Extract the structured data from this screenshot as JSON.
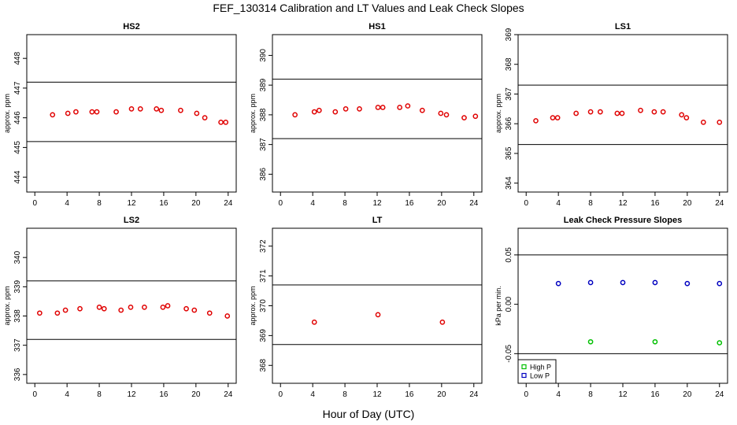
{
  "title": "FEF_130314  Calibration and LT Values and Leak Check Slopes",
  "xlabel": "Hour of Day (UTC)",
  "colors": {
    "points": "#e00000",
    "high_p": "#00c000",
    "low_p": "#0000c0",
    "lines": "#000000"
  },
  "chart_data": [
    {
      "type": "scatter",
      "title": "HS2",
      "ylabel": "approx. ppm",
      "xlim": [
        -1,
        25
      ],
      "ylim": [
        443.5,
        448.8
      ],
      "xticks": [
        0,
        4,
        8,
        12,
        16,
        20,
        24
      ],
      "yticks": [
        444,
        445,
        446,
        447,
        448
      ],
      "hlines": [
        445.2,
        447.2
      ],
      "series": [
        {
          "marker": "circle",
          "x": [
            2.2,
            4.1,
            5.1,
            7.1,
            7.7,
            10.1,
            12,
            13.1,
            15.1,
            15.7,
            18.1,
            20.1,
            21.1,
            23.1,
            23.7
          ],
          "y": [
            446.1,
            446.15,
            446.2,
            446.2,
            446.2,
            446.2,
            446.3,
            446.3,
            446.3,
            446.25,
            446.25,
            446.15,
            446.0,
            445.85,
            445.85
          ]
        }
      ]
    },
    {
      "type": "scatter",
      "title": "HS1",
      "ylabel": "approx. ppm",
      "xlim": [
        -1,
        25
      ],
      "ylim": [
        385.4,
        390.7
      ],
      "xticks": [
        0,
        4,
        8,
        12,
        16,
        20,
        24
      ],
      "yticks": [
        386,
        387,
        388,
        389,
        390
      ],
      "hlines": [
        387.2,
        389.2
      ],
      "series": [
        {
          "marker": "circle",
          "x": [
            1.8,
            4.2,
            4.8,
            6.8,
            8.1,
            9.8,
            12.1,
            12.7,
            14.8,
            15.8,
            17.6,
            19.9,
            20.6,
            22.8,
            24.2
          ],
          "y": [
            388.0,
            388.1,
            388.15,
            388.1,
            388.2,
            388.2,
            388.25,
            388.25,
            388.25,
            388.3,
            388.15,
            388.05,
            388.0,
            387.9,
            387.95
          ]
        }
      ]
    },
    {
      "type": "scatter",
      "title": "LS1",
      "ylabel": "approx. ppm",
      "xlim": [
        -1,
        25
      ],
      "ylim": [
        363.7,
        369.0
      ],
      "xticks": [
        0,
        4,
        8,
        12,
        16,
        20,
        24
      ],
      "yticks": [
        364,
        365,
        366,
        367,
        368,
        369
      ],
      "hlines": [
        365.3,
        367.3
      ],
      "series": [
        {
          "marker": "circle",
          "x": [
            1.2,
            3.3,
            3.9,
            6.2,
            8.0,
            9.2,
            11.3,
            11.9,
            14.2,
            15.9,
            17.0,
            19.3,
            19.9,
            22.0,
            24.0
          ],
          "y": [
            366.1,
            366.2,
            366.2,
            366.35,
            366.4,
            366.4,
            366.35,
            366.35,
            366.45,
            366.4,
            366.4,
            366.3,
            366.2,
            366.05,
            366.05
          ]
        }
      ]
    },
    {
      "type": "scatter",
      "title": "LS2",
      "ylabel": "approx. ppm",
      "xlim": [
        -1,
        25
      ],
      "ylim": [
        335.7,
        341.0
      ],
      "xticks": [
        0,
        4,
        8,
        12,
        16,
        20,
        24
      ],
      "yticks": [
        336,
        337,
        338,
        339,
        340
      ],
      "hlines": [
        337.2,
        339.2
      ],
      "series": [
        {
          "marker": "circle",
          "x": [
            0.6,
            2.8,
            3.8,
            5.6,
            8.0,
            8.6,
            10.7,
            11.9,
            13.6,
            15.9,
            16.5,
            18.8,
            19.8,
            21.7,
            23.9
          ],
          "y": [
            338.1,
            338.1,
            338.2,
            338.25,
            338.3,
            338.25,
            338.2,
            338.3,
            338.3,
            338.3,
            338.35,
            338.25,
            338.2,
            338.1,
            338.0
          ]
        }
      ]
    },
    {
      "type": "scatter",
      "title": "LT",
      "ylabel": "approx. ppm",
      "xlim": [
        -1,
        25
      ],
      "ylim": [
        367.4,
        372.6
      ],
      "xticks": [
        0,
        4,
        8,
        12,
        16,
        20,
        24
      ],
      "yticks": [
        368,
        369,
        370,
        371,
        372
      ],
      "hlines": [
        368.7,
        370.7
      ],
      "series": [
        {
          "marker": "circle",
          "x": [
            4.2,
            12.1,
            20.1
          ],
          "y": [
            369.45,
            369.7,
            369.45
          ]
        }
      ]
    },
    {
      "type": "scatter",
      "title": "Leak Check Pressure Slopes",
      "ylabel": "kPa per min.",
      "xlim": [
        -1,
        25
      ],
      "ylim": [
        -0.08,
        0.077
      ],
      "xticks": [
        0,
        4,
        8,
        12,
        16,
        20,
        24
      ],
      "yticks": [
        -0.05,
        0.0,
        0.05
      ],
      "ytick_labels": [
        "-0.05",
        "0.00",
        "0.05"
      ],
      "hlines": [
        -0.05,
        0.05
      ],
      "legend": {
        "placement": "bottom-left",
        "entries": [
          "High P",
          "Low P"
        ]
      },
      "series": [
        {
          "name": "High P",
          "marker": "circle",
          "color": "#00c000",
          "x": [
            8,
            16,
            24
          ],
          "y": [
            -0.038,
            -0.038,
            -0.039
          ]
        },
        {
          "name": "Low P",
          "marker": "circle",
          "color": "#0000c0",
          "x": [
            4,
            8,
            12,
            16,
            20,
            24
          ],
          "y": [
            0.021,
            0.022,
            0.022,
            0.022,
            0.021,
            0.021
          ]
        }
      ]
    }
  ]
}
